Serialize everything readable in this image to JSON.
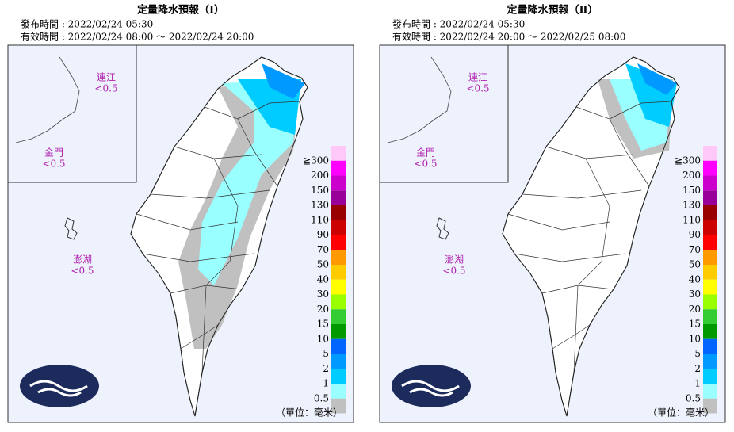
{
  "legend": {
    "labels": [
      "≧300",
      "200",
      "150",
      "130",
      "110",
      "90",
      "70",
      "50",
      "40",
      "30",
      "20",
      "15",
      "10",
      "5",
      "2",
      "1",
      "0.5"
    ],
    "colors": [
      "#ffc8f8",
      "#ff00ff",
      "#cc00cc",
      "#990099",
      "#990000",
      "#cc0000",
      "#ff0000",
      "#ff9900",
      "#ffcc00",
      "#ffff00",
      "#99ff00",
      "#33cc33",
      "#009900",
      "#0066ff",
      "#0099ff",
      "#00ccff",
      "#99ffff"
    ],
    "below_color": "#c0c0c0"
  },
  "panels": [
    {
      "title": "定量降水預報（Ⅰ）",
      "issued": "發布時間 : 2022/02/24 05:30",
      "valid": "有效時間 : 2022/02/24 08:00 ～ 2022/02/24 20:00",
      "islands": [
        {
          "name": "連江",
          "value": "<0.5"
        },
        {
          "name": "金門",
          "value": "<0.5"
        },
        {
          "name": "澎湖",
          "value": "<0.5"
        }
      ],
      "unit": "（單位：毫米）"
    },
    {
      "title": "定量降水預報（Ⅱ）",
      "issued": "發布時間 : 2022/02/24 05:30",
      "valid": "有效時間 : 2022/02/24 20:00 ～ 2022/02/25 08:00",
      "islands": [
        {
          "name": "連江",
          "value": "<0.5"
        },
        {
          "name": "金門",
          "value": "<0.5"
        },
        {
          "name": "澎湖",
          "value": "<0.5"
        }
      ],
      "unit": "（單位：毫米）"
    }
  ]
}
